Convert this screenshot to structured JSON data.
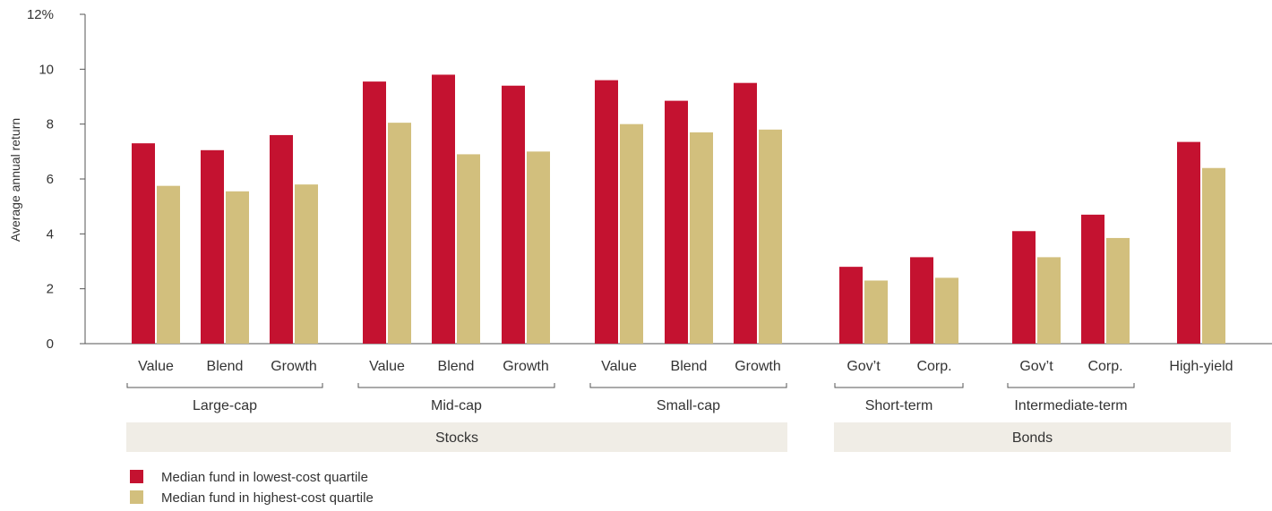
{
  "chart_data": {
    "type": "bar",
    "ylabel": "Average annual return",
    "ylim": [
      0,
      12
    ],
    "yticks": [
      {
        "value": 0,
        "label": "0"
      },
      {
        "value": 2,
        "label": "2"
      },
      {
        "value": 4,
        "label": "4"
      },
      {
        "value": 6,
        "label": "6"
      },
      {
        "value": 8,
        "label": "8"
      },
      {
        "value": 10,
        "label": "10"
      },
      {
        "value": 12,
        "label": "12%"
      }
    ],
    "categories": [
      "Value",
      "Blend",
      "Growth",
      "Value",
      "Blend",
      "Growth",
      "Value",
      "Blend",
      "Growth",
      "Gov’t",
      "Corp.",
      "Gov’t",
      "Corp.",
      "High-yield"
    ],
    "series": [
      {
        "name": "Median fund in lowest-cost quartile",
        "color": "#c41230",
        "values": [
          7.3,
          7.05,
          7.6,
          9.55,
          9.8,
          9.4,
          9.6,
          8.85,
          9.5,
          2.8,
          3.15,
          4.1,
          4.7,
          7.35
        ]
      },
      {
        "name": "Median fund in highest-cost quartile",
        "color": "#d2bf7d",
        "values": [
          5.75,
          5.55,
          5.8,
          8.05,
          6.9,
          7.0,
          8.0,
          7.7,
          7.8,
          2.3,
          2.4,
          3.15,
          3.85,
          6.4
        ]
      }
    ],
    "subgroups": [
      {
        "label": "Large-cap",
        "first": 0,
        "last": 2
      },
      {
        "label": "Mid-cap",
        "first": 3,
        "last": 5
      },
      {
        "label": "Small-cap",
        "first": 6,
        "last": 8
      },
      {
        "label": "Short-term",
        "first": 9,
        "last": 10
      },
      {
        "label": "Intermediate-term",
        "first": 11,
        "last": 12
      }
    ],
    "bands": [
      {
        "label": "Stocks",
        "first": 0,
        "last": 8
      },
      {
        "label": "Bonds",
        "first": 9,
        "last": 13
      }
    ],
    "grid": false,
    "legend": "bottom-left"
  }
}
